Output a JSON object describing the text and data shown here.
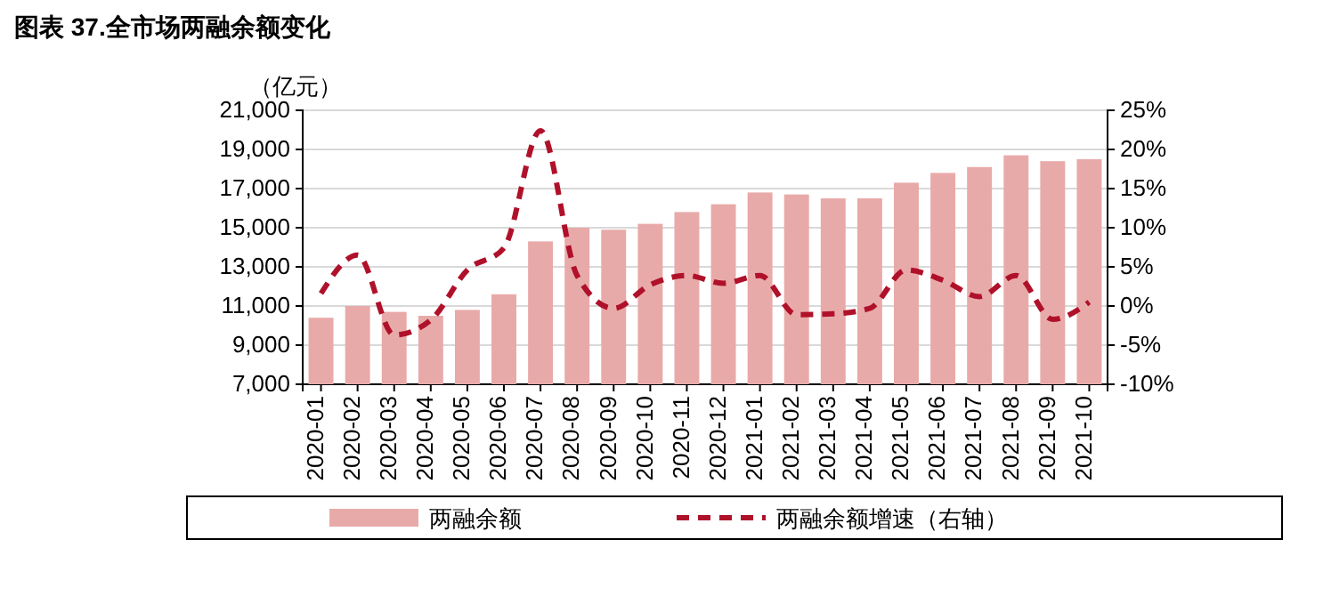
{
  "chart_data": {
    "type": "bar",
    "title": "图表 37.全市场两融余额变化",
    "ylabel": "（亿元）",
    "categories": [
      "2020-01",
      "2020-02",
      "2020-03",
      "2020-04",
      "2020-05",
      "2020-06",
      "2020-07",
      "2020-08",
      "2020-09",
      "2020-10",
      "2020-11",
      "2020-12",
      "2021-01",
      "2021-02",
      "2021-03",
      "2021-04",
      "2021-05",
      "2021-06",
      "2021-07",
      "2021-08",
      "2021-09",
      "2021-10"
    ],
    "series": [
      {
        "name": "两融余额",
        "color": "#e8aaa9",
        "values": [
          10400,
          11000,
          10700,
          10500,
          10800,
          11600,
          14300,
          15000,
          14900,
          15200,
          15800,
          16200,
          16800,
          16700,
          16500,
          16500,
          17300,
          17800,
          18100,
          18700,
          18400,
          18500
        ]
      },
      {
        "name": "两融余额增速（右轴）",
        "type": "line",
        "axis": "y2",
        "color": "#b0112a",
        "line_style": "dashed",
        "values": [
          1.6,
          6.5,
          -3.7,
          -1.8,
          4.6,
          7.4,
          22.4,
          3.9,
          -0.3,
          2.7,
          3.9,
          2.9,
          3.9,
          -1.1,
          -1.0,
          -0.3,
          4.6,
          3.3,
          1.2,
          3.9,
          -1.7,
          0.5
        ]
      }
    ],
    "ylim": [
      7000,
      21000
    ],
    "yticks": [
      {
        "value": 7000,
        "label": "7,000"
      },
      {
        "value": 9000,
        "label": "9,000"
      },
      {
        "value": 11000,
        "label": "11,000"
      },
      {
        "value": 13000,
        "label": "13,000"
      },
      {
        "value": 15000,
        "label": "15,000"
      },
      {
        "value": 17000,
        "label": "17,000"
      },
      {
        "value": 19000,
        "label": "19,000"
      },
      {
        "value": 21000,
        "label": "21,000"
      }
    ],
    "y2lim": [
      -10,
      25
    ],
    "y2ticks": [
      {
        "value": -10,
        "label": "-10%"
      },
      {
        "value": -5,
        "label": "-5%"
      },
      {
        "value": 0,
        "label": "0%"
      },
      {
        "value": 5,
        "label": "5%"
      },
      {
        "value": 10,
        "label": "10%"
      },
      {
        "value": 15,
        "label": "15%"
      },
      {
        "value": 20,
        "label": "20%"
      },
      {
        "value": 25,
        "label": "25%"
      }
    ],
    "grid": "y",
    "legend": "bottom"
  }
}
